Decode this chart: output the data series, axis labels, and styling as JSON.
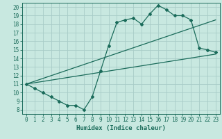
{
  "xlabel": "Humidex (Indice chaleur)",
  "bg_color": "#c8e8e0",
  "line_color": "#1a6b5a",
  "grid_color": "#a8ccc8",
  "xlim": [
    -0.5,
    23.5
  ],
  "ylim": [
    7.5,
    20.5
  ],
  "xticks": [
    0,
    1,
    2,
    3,
    4,
    5,
    6,
    7,
    8,
    9,
    10,
    11,
    12,
    13,
    14,
    15,
    16,
    17,
    18,
    19,
    20,
    21,
    22,
    23
  ],
  "yticks": [
    8,
    9,
    10,
    11,
    12,
    13,
    14,
    15,
    16,
    17,
    18,
    19,
    20
  ],
  "line1_x": [
    0,
    1,
    2,
    3,
    4,
    5,
    6,
    7,
    8,
    9,
    10,
    11,
    12,
    13,
    14,
    15,
    16,
    17,
    18,
    19,
    20,
    21,
    22,
    23
  ],
  "line1_y": [
    11.0,
    10.5,
    10.0,
    9.5,
    9.0,
    8.5,
    8.5,
    8.0,
    9.5,
    12.5,
    15.5,
    18.2,
    18.5,
    18.7,
    18.0,
    19.2,
    20.2,
    19.7,
    19.0,
    19.0,
    18.5,
    15.2,
    15.0,
    14.7
  ],
  "line2_x": [
    0,
    23
  ],
  "line2_y": [
    11.0,
    18.5
  ],
  "line3_x": [
    0,
    23
  ],
  "line3_y": [
    11.0,
    14.5
  ],
  "tick_fontsize": 5.5,
  "xlabel_fontsize": 6.5
}
